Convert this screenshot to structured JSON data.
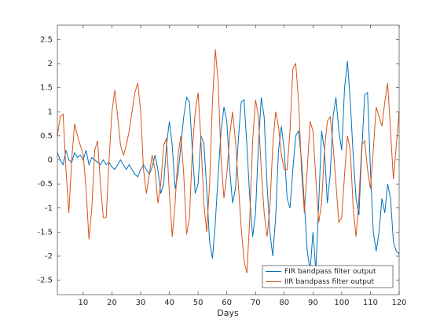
{
  "chart_data": {
    "type": "line",
    "xlabel": "Days",
    "x": [
      1,
      2,
      3,
      4,
      5,
      6,
      7,
      8,
      9,
      10,
      11,
      12,
      13,
      14,
      15,
      16,
      17,
      18,
      19,
      20,
      21,
      22,
      23,
      24,
      25,
      26,
      27,
      28,
      29,
      30,
      31,
      32,
      33,
      34,
      35,
      36,
      37,
      38,
      39,
      40,
      41,
      42,
      43,
      44,
      45,
      46,
      47,
      48,
      49,
      50,
      51,
      52,
      53,
      54,
      55,
      56,
      57,
      58,
      59,
      60,
      61,
      62,
      63,
      64,
      65,
      66,
      67,
      68,
      69,
      70,
      71,
      72,
      73,
      74,
      75,
      76,
      77,
      78,
      79,
      80,
      81,
      82,
      83,
      84,
      85,
      86,
      87,
      88,
      89,
      90,
      91,
      92,
      93,
      94,
      95,
      96,
      97,
      98,
      99,
      100,
      101,
      102,
      103,
      104,
      105,
      106,
      107,
      108,
      109,
      110,
      111,
      112,
      113,
      114,
      115,
      116,
      117,
      118,
      119,
      120
    ],
    "series": [
      {
        "name": "FIR bandpass filter output",
        "color": "#0072bd",
        "values": [
          0.15,
          0.0,
          -0.1,
          0.2,
          0.0,
          -0.05,
          0.15,
          0.05,
          0.1,
          0.0,
          0.2,
          -0.1,
          0.05,
          0.0,
          -0.05,
          -0.1,
          0.0,
          -0.1,
          -0.05,
          -0.15,
          -0.2,
          -0.1,
          0.0,
          -0.1,
          -0.2,
          -0.1,
          -0.2,
          -0.3,
          -0.35,
          -0.2,
          -0.1,
          -0.2,
          -0.3,
          -0.15,
          0.1,
          -0.2,
          -0.7,
          -0.5,
          0.3,
          0.8,
          0.3,
          -0.6,
          -0.3,
          0.3,
          0.9,
          1.3,
          1.2,
          0.2,
          -0.7,
          -0.5,
          0.5,
          0.35,
          -0.6,
          -1.7,
          -2.05,
          -1.3,
          -0.3,
          0.6,
          1.1,
          0.8,
          -0.2,
          -0.9,
          -0.6,
          0.4,
          1.2,
          1.25,
          0.3,
          -0.8,
          -1.6,
          -1.1,
          0.3,
          1.3,
          0.9,
          -0.5,
          -1.5,
          -2.0,
          -1.2,
          0.2,
          0.7,
          0.2,
          -0.8,
          -1.0,
          -0.2,
          0.5,
          0.6,
          0.0,
          -0.9,
          -1.9,
          -2.3,
          -1.5,
          -2.3,
          -0.9,
          0.6,
          0.2,
          -0.9,
          -0.3,
          0.9,
          1.3,
          0.6,
          0.2,
          1.5,
          2.05,
          1.2,
          0.1,
          -0.8,
          -1.15,
          0.2,
          1.35,
          1.4,
          -0.2,
          -1.5,
          -1.9,
          -1.5,
          -0.8,
          -1.1,
          -0.5,
          -0.8,
          -1.7,
          -1.9,
          -1.95
        ]
      },
      {
        "name": "IIR bandpass filter output",
        "color": "#d95319",
        "values": [
          0.5,
          0.9,
          0.95,
          -0.2,
          -1.1,
          0.0,
          0.75,
          0.5,
          0.3,
          0.1,
          -0.6,
          -1.65,
          -1.0,
          0.2,
          0.4,
          -0.5,
          -1.2,
          -1.2,
          0.0,
          1.0,
          1.45,
          0.9,
          0.3,
          0.1,
          0.3,
          0.6,
          1.0,
          1.4,
          1.6,
          1.0,
          -0.2,
          -0.7,
          -0.3,
          0.1,
          -0.2,
          -0.9,
          -0.5,
          0.3,
          0.45,
          -0.7,
          -1.6,
          -0.9,
          0.1,
          0.5,
          -0.3,
          -1.55,
          -1.2,
          0.2,
          1.0,
          1.4,
          0.4,
          -0.9,
          -1.5,
          -0.5,
          1.2,
          2.3,
          1.6,
          0.0,
          -0.8,
          -0.3,
          0.5,
          1.0,
          0.4,
          -0.5,
          -1.4,
          -2.1,
          -2.35,
          -1.2,
          0.4,
          1.25,
          0.9,
          -0.2,
          -1.1,
          -1.6,
          -1.0,
          0.3,
          1.0,
          0.7,
          0.1,
          -0.2,
          -0.2,
          0.6,
          1.9,
          2.0,
          1.2,
          -0.2,
          -1.1,
          -0.2,
          0.8,
          0.6,
          -0.4,
          -1.3,
          -0.9,
          0.2,
          0.8,
          0.9,
          0.3,
          -0.5,
          -1.3,
          -1.2,
          -0.3,
          0.5,
          0.2,
          -1.0,
          -1.6,
          -0.8,
          0.3,
          0.4,
          -0.2,
          -0.6,
          0.2,
          1.1,
          0.9,
          0.7,
          1.2,
          1.6,
          0.6,
          -0.4,
          0.3,
          1.0
        ]
      }
    ],
    "xlim": [
      1,
      120
    ],
    "xticks": [
      10,
      20,
      30,
      40,
      50,
      60,
      70,
      80,
      90,
      100,
      110,
      120
    ],
    "ylim": [
      -2.8,
      2.8
    ],
    "yticks": [
      -2.5,
      -2,
      -1.5,
      -1,
      -0.5,
      0,
      0.5,
      1,
      1.5,
      2,
      2.5
    ],
    "grid": false,
    "legend": "southeast"
  }
}
